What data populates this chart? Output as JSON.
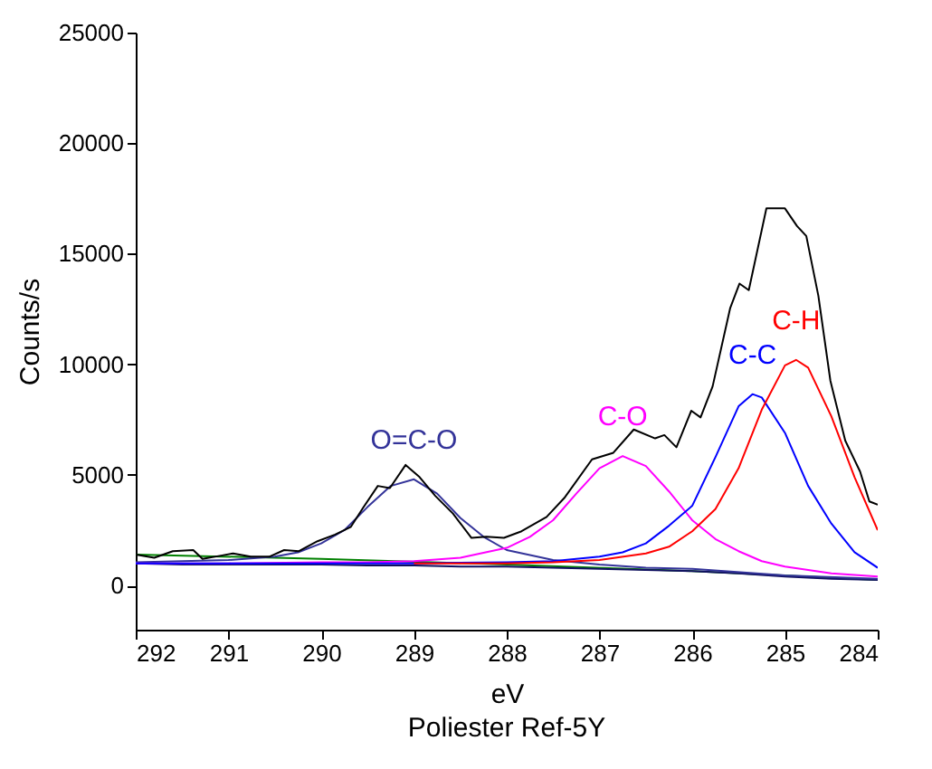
{
  "chart_data": {
    "type": "line",
    "xlabel": "eV",
    "ylabel": "Counts/s",
    "annotations": [
      "Poliester Ref-5Y"
    ],
    "xlim": [
      292,
      284
    ],
    "xticks": [
      292,
      291,
      290,
      289,
      288,
      287,
      286,
      285,
      284
    ],
    "ylim": [
      -2000,
      25000
    ],
    "yticks": [
      0,
      5000,
      10000,
      15000,
      20000,
      25000
    ],
    "grid": false,
    "legend": false,
    "series": [
      {
        "color": "#008000",
        "x": [
          292,
          290,
          288,
          286,
          284
        ],
        "values": [
          1400,
          1200,
          950,
          650,
          250
        ]
      },
      {
        "color": "#101060",
        "x": [
          292,
          291.5,
          291,
          290.5,
          290,
          289.5,
          289,
          288.5,
          288,
          287.5,
          287,
          286.5,
          286,
          285.5,
          285,
          284.5,
          284
        ],
        "values": [
          1000,
          950,
          950,
          950,
          950,
          900,
          900,
          850,
          850,
          800,
          750,
          700,
          650,
          550,
          400,
          300,
          250
        ]
      },
      {
        "name": "O=C-O",
        "color": "#333399",
        "x": [
          292,
          291.5,
          291,
          290.5,
          290.25,
          290,
          289.75,
          289.5,
          289.25,
          289,
          288.75,
          288.5,
          288.25,
          288,
          287.5,
          287,
          286.5,
          286,
          285,
          284
        ],
        "values": [
          1050,
          1100,
          1150,
          1300,
          1500,
          1900,
          2500,
          3550,
          4500,
          4800,
          4150,
          3050,
          2200,
          1600,
          1150,
          950,
          800,
          750,
          450,
          300
        ]
      },
      {
        "name": "C-O",
        "color": "#ff00ff",
        "x": [
          292,
          291,
          290,
          289.5,
          289,
          288.5,
          288,
          287.75,
          287.5,
          287.25,
          287,
          286.75,
          286.5,
          286.25,
          286,
          285.75,
          285.5,
          285.25,
          285,
          284.5,
          284
        ],
        "values": [
          1000,
          1000,
          1050,
          1050,
          1100,
          1250,
          1700,
          2200,
          2950,
          4150,
          5300,
          5850,
          5400,
          4250,
          2950,
          2100,
          1550,
          1100,
          850,
          550,
          400
        ]
      },
      {
        "name": "C-C",
        "color": "#0000ff",
        "x": [
          292,
          290,
          289,
          288,
          287.5,
          287,
          286.75,
          286.5,
          286.25,
          286,
          285.75,
          285.5,
          285.35,
          285.25,
          285,
          284.75,
          284.5,
          284.25,
          284
        ],
        "values": [
          1000,
          1000,
          1000,
          1050,
          1100,
          1300,
          1500,
          1900,
          2700,
          3600,
          5800,
          8100,
          8650,
          8500,
          6900,
          4500,
          2800,
          1500,
          800
        ]
      },
      {
        "name": "C-H",
        "color": "#ff0000",
        "x": [
          289,
          288,
          287.5,
          287,
          286.5,
          286.25,
          286,
          285.75,
          285.5,
          285.25,
          285,
          284.88,
          284.75,
          284.5,
          284.25,
          284
        ],
        "values": [
          1000,
          1000,
          1050,
          1150,
          1450,
          1750,
          2450,
          3450,
          5300,
          7950,
          9950,
          10200,
          9850,
          7650,
          4900,
          2500
        ]
      },
      {
        "color": "#000000",
        "x": [
          292,
          291.8,
          291.6,
          291.38,
          291.28,
          291.08,
          290.95,
          290.76,
          290.56,
          290.4,
          290.24,
          290.04,
          289.85,
          289.68,
          289.55,
          289.39,
          289.26,
          289.09,
          288.94,
          288.77,
          288.58,
          288.38,
          288.22,
          288.03,
          287.84,
          287.57,
          287.38,
          287.08,
          286.85,
          286.63,
          286.4,
          286.3,
          286.17,
          286.01,
          285.91,
          285.78,
          285.59,
          285.49,
          285.39,
          285.2,
          285,
          284.87,
          284.77,
          284.64,
          284.51,
          284.35,
          284.19,
          284.09,
          284
        ],
        "values": [
          1400,
          1250,
          1550,
          1600,
          1200,
          1350,
          1450,
          1300,
          1300,
          1600,
          1550,
          2000,
          2300,
          2650,
          3500,
          4500,
          4400,
          5450,
          4900,
          4050,
          3250,
          2150,
          2200,
          2150,
          2450,
          3100,
          3950,
          5700,
          6000,
          7050,
          6650,
          6800,
          6250,
          7900,
          7600,
          9000,
          12550,
          13650,
          13350,
          17050,
          17050,
          16250,
          15800,
          13100,
          9250,
          6550,
          5150,
          3800,
          3650
        ]
      }
    ]
  }
}
